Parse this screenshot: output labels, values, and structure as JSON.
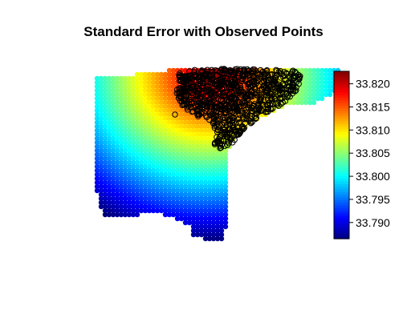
{
  "chart_data": {
    "type": "heatmap",
    "title": "Standard Error with Observed Points",
    "xlabel": "",
    "ylabel": "",
    "legend": {
      "position": "right",
      "range": [
        33.7865,
        33.8227
      ],
      "ticks": [
        "33.790",
        "33.795",
        "33.800",
        "33.805",
        "33.810",
        "33.815",
        "33.820"
      ],
      "tick_values": [
        33.79,
        33.795,
        33.8,
        33.805,
        33.81,
        33.815,
        33.82
      ]
    },
    "colormap": [
      "#00007f",
      "#0000ff",
      "#007fff",
      "#00ffff",
      "#7fff7f",
      "#ffff00",
      "#ff7f00",
      "#ff0000",
      "#7f0000"
    ],
    "observed_points_color": "#000000",
    "grid": false
  }
}
